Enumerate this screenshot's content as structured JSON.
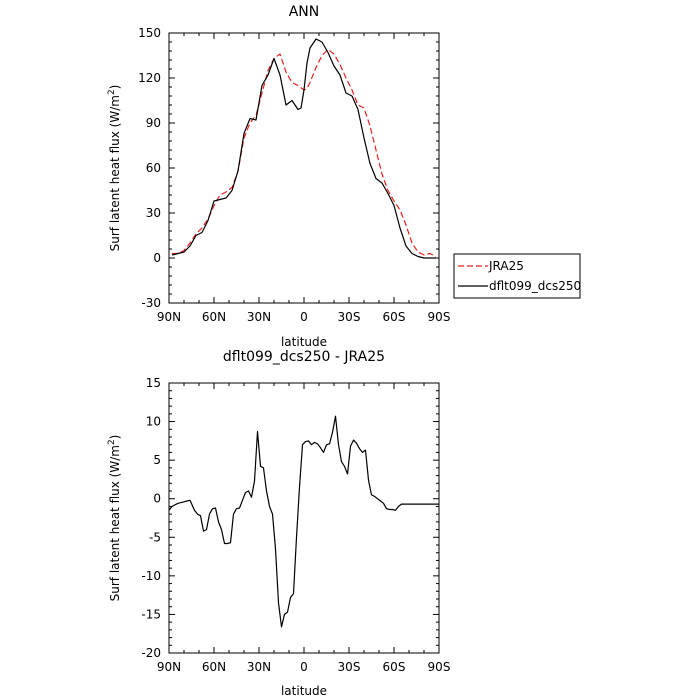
{
  "chart_data": [
    {
      "type": "line",
      "title": "ANN",
      "xlabel": "latitude",
      "ylabel": "Surf latent heat flux (W/m²)",
      "ylabel_parts": {
        "main": "Surf latent heat flux (W/m",
        "sup": "2",
        "end": ")"
      },
      "xlim": [
        90,
        -90
      ],
      "ylim": [
        -30,
        150
      ],
      "xticks": [
        90,
        60,
        30,
        0,
        -30,
        -60,
        -90
      ],
      "xtick_labels": [
        "90N",
        "60N",
        "30N",
        "0",
        "30S",
        "60S",
        "90S"
      ],
      "yticks": [
        -30,
        0,
        30,
        60,
        90,
        120,
        150
      ],
      "ytick_labels": [
        "-30",
        "0",
        "30",
        "60",
        "90",
        "120",
        "150"
      ],
      "legend": {
        "placement": "right",
        "entries": [
          "JRA25",
          "dflt099_dcs250"
        ]
      },
      "series": [
        {
          "name": "JRA25",
          "color": "#e8201e",
          "dash": true,
          "x": [
            88,
            84,
            80,
            76,
            72,
            68,
            64,
            60,
            56,
            52,
            48,
            44,
            40,
            36,
            32,
            28,
            24,
            20,
            16,
            12,
            8,
            4,
            0,
            -2,
            -4,
            -8,
            -12,
            -16,
            -20,
            -24,
            -28,
            -32,
            -36,
            -40,
            -44,
            -48,
            -52,
            -56,
            -60,
            -64,
            -68,
            -72,
            -76,
            -80,
            -84,
            -88
          ],
          "y": [
            3,
            3,
            5,
            10,
            16,
            20,
            26,
            35,
            42,
            44,
            47,
            58,
            80,
            90,
            95,
            110,
            125,
            133,
            136,
            124,
            117,
            115,
            112,
            113,
            117,
            127,
            135,
            139,
            136,
            129,
            120,
            112,
            102,
            100,
            88,
            72,
            56,
            45,
            38,
            32,
            22,
            10,
            4,
            2,
            3,
            1
          ]
        },
        {
          "name": "dflt099_dcs250",
          "color": "#000000",
          "dash": false,
          "x": [
            88,
            84,
            80,
            76,
            72,
            68,
            64,
            60,
            56,
            52,
            48,
            44,
            40,
            36,
            32,
            28,
            24,
            20,
            16,
            12,
            8,
            4,
            2,
            0,
            -2,
            -4,
            -8,
            -12,
            -16,
            -20,
            -24,
            -28,
            -32,
            -36,
            -40,
            -44,
            -48,
            -52,
            -56,
            -60,
            -64,
            -68,
            -72,
            -76,
            -80,
            -84,
            -88
          ],
          "y": [
            2,
            3,
            4,
            8,
            15,
            17,
            25,
            38,
            39,
            40,
            45,
            58,
            83,
            93,
            92,
            115,
            122,
            133,
            122,
            102,
            105,
            99,
            100,
            112,
            130,
            140,
            146,
            144,
            137,
            128,
            122,
            110,
            108,
            99,
            80,
            63,
            53,
            50,
            43,
            35,
            20,
            8,
            3,
            1,
            0,
            0,
            0
          ]
        }
      ]
    },
    {
      "type": "line",
      "title": "dflt099_dcs250 - JRA25",
      "xlabel": "latitude",
      "ylabel": "Surf latent heat flux (W/m²)",
      "ylabel_parts": {
        "main": "Surf latent heat flux (W/m",
        "sup": "2",
        "end": ")"
      },
      "xlim": [
        90,
        -90
      ],
      "ylim": [
        -20,
        15
      ],
      "xticks": [
        90,
        60,
        30,
        0,
        -30,
        -60,
        -90
      ],
      "xtick_labels": [
        "90N",
        "60N",
        "30N",
        "0",
        "30S",
        "60S",
        "90S"
      ],
      "yticks": [
        -20,
        -15,
        -10,
        -5,
        0,
        5,
        10,
        15
      ],
      "ytick_labels": [
        "-20",
        "-15",
        "-10",
        "-5",
        "0",
        "5",
        "10",
        "15"
      ],
      "series": [
        {
          "name": "",
          "color": "#000000",
          "dash": false,
          "x": [
            90,
            88,
            84,
            82,
            80,
            78,
            76,
            73,
            71,
            69,
            67,
            65,
            63,
            61,
            59,
            57,
            55,
            53,
            51,
            49,
            47,
            45,
            43,
            41,
            39,
            37,
            35,
            33,
            31,
            29,
            27,
            25,
            23,
            21,
            19,
            17,
            15,
            13,
            11,
            9,
            7,
            5,
            3,
            1,
            -1,
            -3,
            -5,
            -7,
            -9,
            -11,
            -13,
            -15,
            -17,
            -19,
            -21,
            -23,
            -25,
            -27,
            -29,
            -31,
            -33,
            -35,
            -37,
            -39,
            -41,
            -43,
            -45,
            -47,
            -49,
            -51,
            -53,
            -55,
            -57,
            -59,
            -61,
            -63,
            -65,
            -67,
            -69,
            -71,
            -73,
            -75,
            -77,
            -79,
            -81,
            -83,
            -85,
            -87,
            -89,
            -90
          ],
          "y": [
            -1.5,
            -1,
            -0.6,
            -0.5,
            -0.4,
            -0.3,
            -0.2,
            -1.5,
            -2,
            -2.2,
            -4.2,
            -4,
            -2,
            -1.3,
            -1.2,
            -3,
            -4,
            -5.8,
            -5.8,
            -5.7,
            -2,
            -1.3,
            -1.2,
            -0.2,
            0.8,
            1,
            0.2,
            2.3,
            8.7,
            4.2,
            4,
            1,
            -1,
            -2,
            -6.5,
            -13.5,
            -16.6,
            -15,
            -14.7,
            -12.8,
            -12.3,
            -5,
            1.5,
            7,
            7.4,
            7.5,
            7,
            7.3,
            7.1,
            6.6,
            6,
            7,
            7.1,
            8.6,
            10.7,
            7,
            4.8,
            4.2,
            3.2,
            6.8,
            7.6,
            7.2,
            6.5,
            6,
            6.3,
            2.4,
            0.5,
            0.3,
            0,
            -0.3,
            -0.6,
            -1.3,
            -1.4,
            -1.4,
            -1.5,
            -1,
            -0.7,
            -0.7,
            -0.7,
            -0.7,
            -0.7,
            -0.7,
            -0.7,
            -0.7,
            -0.7,
            -0.7,
            -0.7,
            -0.7,
            -0.7,
            -0.7
          ]
        }
      ]
    }
  ]
}
